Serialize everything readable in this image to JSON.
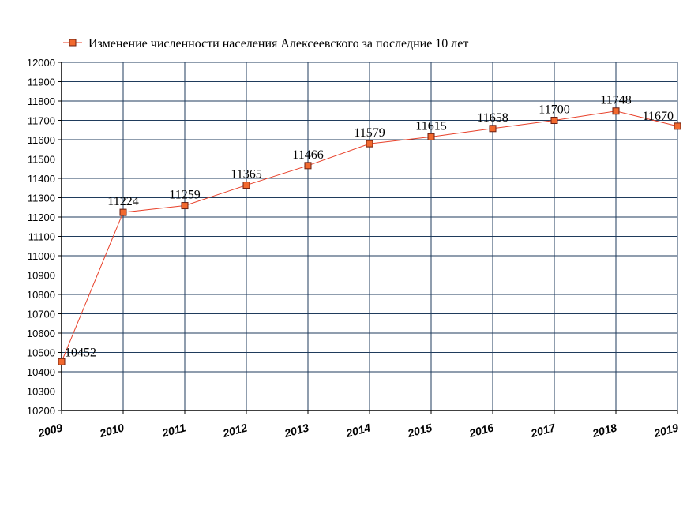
{
  "chart_data": {
    "type": "line",
    "title": "",
    "xlabel": "",
    "ylabel": "",
    "legend": {
      "position": "top",
      "label": "Изменение численности населения Алексеевского за последние 10 лет"
    },
    "categories": [
      "2009",
      "2010",
      "2011",
      "2012",
      "2013",
      "2014",
      "2015",
      "2016",
      "2017",
      "2018",
      "2019"
    ],
    "series": [
      {
        "name": "Изменение численности населения Алексеевского за последние 10 лет",
        "values": [
          10452,
          11224,
          11259,
          11365,
          11466,
          11579,
          11615,
          11658,
          11700,
          11748,
          11670
        ],
        "labels": [
          "10452",
          "11224",
          "11259",
          "11365",
          "11466",
          "11579",
          "11615",
          "11658",
          "11700",
          "11748",
          "11670"
        ]
      }
    ],
    "ylim": [
      10200,
      12000
    ],
    "yticks": [
      "10200",
      "10300",
      "10400",
      "10500",
      "10600",
      "10700",
      "10800",
      "10900",
      "11000",
      "11100",
      "11200",
      "11300",
      "11400",
      "11500",
      "11600",
      "11700",
      "11800",
      "11900",
      "12000"
    ],
    "grid": true,
    "colors": {
      "line": "#e8412a",
      "marker_fill": "#f2692e",
      "marker_stroke": "#6b1e10",
      "grid": "#1f3b5c",
      "axis": "#000000"
    }
  }
}
